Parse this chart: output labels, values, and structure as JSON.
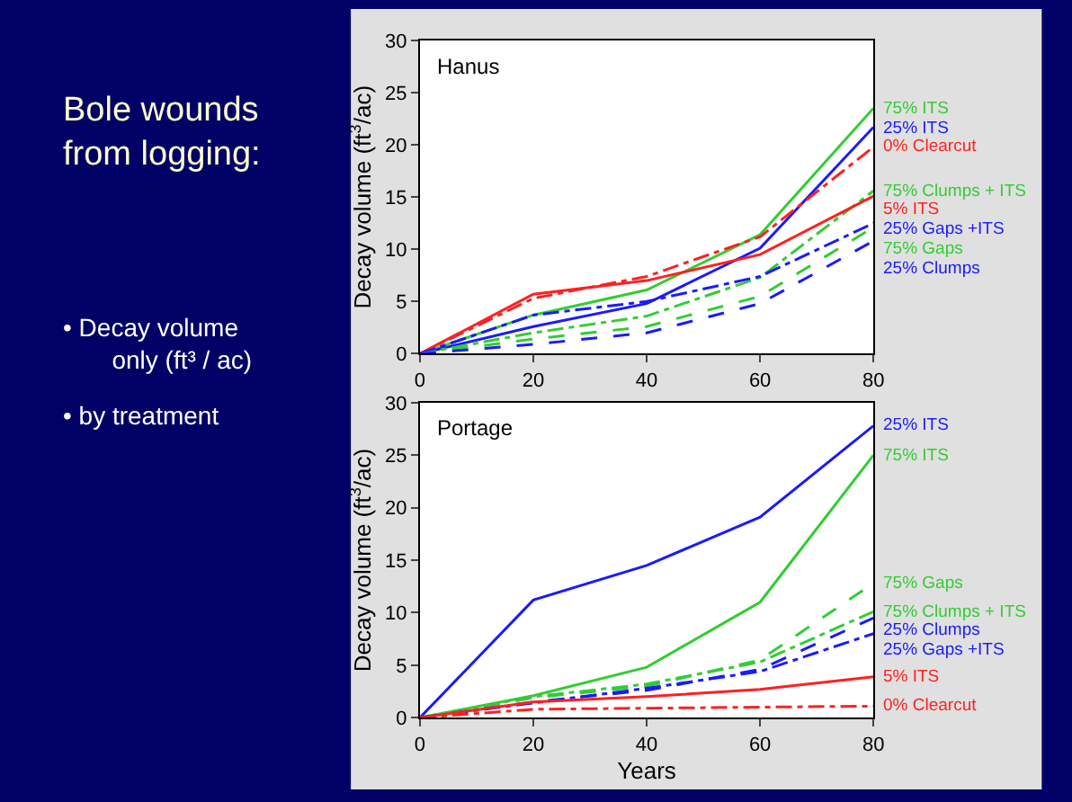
{
  "chart_data": [
    {
      "type": "other",
      "title": "Bole wounds from logging:",
      "annotations": [
        "• Decay volume only (ft³ / ac)",
        "• by treatment"
      ]
    },
    {
      "type": "line",
      "title": "Hanus",
      "ylabel": "Decay volume (ft$^{3}$/ac)",
      "x": [
        0,
        20,
        40,
        60,
        80
      ],
      "xlim": [
        0,
        80
      ],
      "xticks": [
        0,
        20,
        40,
        60,
        80
      ],
      "ylim": [
        0,
        30
      ],
      "yticks": [
        0,
        5,
        10,
        15,
        20,
        25,
        30
      ],
      "marker": "none",
      "series": [
        {
          "name": "75% ITS",
          "color": "#33cc33",
          "line_style": "solid",
          "values": [
            0,
            3.7,
            6.1,
            11.4,
            23.5
          ]
        },
        {
          "name": "25% ITS",
          "color": "#1a1aff",
          "line_style": "solid",
          "values": [
            0,
            2.6,
            4.8,
            10.1,
            21.7
          ]
        },
        {
          "name": "0% Clearcut",
          "color": "#ff2020",
          "line_style": "dotted",
          "values": [
            0,
            5.3,
            7.4,
            11.2,
            19.8
          ]
        },
        {
          "name": "75% Clumps + ITS",
          "color": "#33cc33",
          "line_style": "dotted",
          "values": [
            0,
            2.0,
            3.6,
            7.3,
            15.6
          ]
        },
        {
          "name": "5% ITS",
          "color": "#ff2020",
          "line_style": "solid",
          "values": [
            0,
            5.7,
            7.0,
            9.5,
            15.1
          ]
        },
        {
          "name": "25% Gaps +ITS",
          "color": "#1a1aff",
          "line_style": "dotted",
          "values": [
            0,
            3.7,
            5.0,
            7.4,
            12.5
          ]
        },
        {
          "name": "75% Gaps",
          "color": "#33cc33",
          "line_style": "dashed",
          "values": [
            0,
            1.4,
            2.6,
            5.5,
            12.1
          ]
        },
        {
          "name": "25% Clumps",
          "color": "#1a1aff",
          "line_style": "dashed",
          "values": [
            0,
            0.9,
            2.0,
            4.8,
            10.8
          ]
        }
      ]
    },
    {
      "type": "line",
      "title": "Portage",
      "ylabel": "Decay volume (ft$^{3}$/ac)",
      "xlabel": "Years",
      "x": [
        0,
        20,
        40,
        60,
        80
      ],
      "xlim": [
        0,
        80
      ],
      "xticks": [
        0,
        20,
        40,
        60,
        80
      ],
      "ylim": [
        0,
        30
      ],
      "yticks": [
        0,
        5,
        10,
        15,
        20,
        25,
        30
      ],
      "marker": "none",
      "series": [
        {
          "name": "25% ITS",
          "color": "#1a1aff",
          "line_style": "solid",
          "values": [
            0,
            11.2,
            14.5,
            19.1,
            27.8
          ]
        },
        {
          "name": "75% ITS",
          "color": "#33cc33",
          "line_style": "solid",
          "values": [
            0,
            2.1,
            4.8,
            11.0,
            25.0
          ]
        },
        {
          "name": "75% Gaps",
          "color": "#33cc33",
          "line_style": "dashed",
          "values": [
            0,
            1.9,
            3.0,
            5.5,
            12.8
          ]
        },
        {
          "name": "75% Clumps + ITS",
          "color": "#33cc33",
          "line_style": "dotted",
          "values": [
            0,
            2.0,
            3.2,
            5.3,
            10.1
          ]
        },
        {
          "name": "25% Clumps",
          "color": "#1a1aff",
          "line_style": "dashed",
          "values": [
            0,
            1.5,
            2.6,
            4.6,
            9.5
          ]
        },
        {
          "name": "25% Gaps +ITS",
          "color": "#1a1aff",
          "line_style": "dotted",
          "values": [
            0,
            1.4,
            2.8,
            4.4,
            8.0
          ]
        },
        {
          "name": "5% ITS",
          "color": "#ff2020",
          "line_style": "solid",
          "values": [
            0,
            1.5,
            2.0,
            2.7,
            3.9
          ]
        },
        {
          "name": "0% Clearcut",
          "color": "#ff2020",
          "line_style": "dotted",
          "values": [
            0,
            0.8,
            0.9,
            1.0,
            1.1
          ]
        }
      ]
    }
  ]
}
